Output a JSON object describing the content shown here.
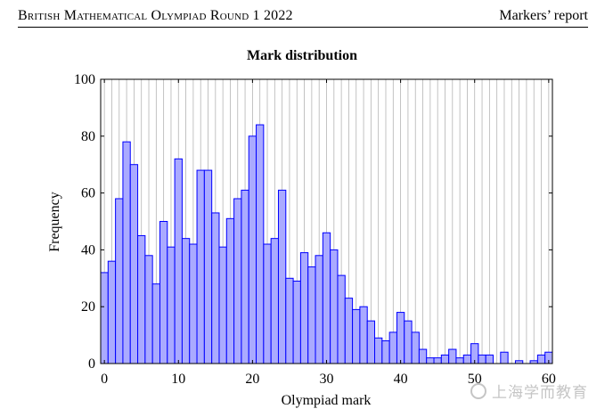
{
  "header": {
    "left": "British Mathematical Olympiad Round 1 2022",
    "right": "Markers’ report"
  },
  "watermark": "上海学而教育",
  "chart_data": {
    "type": "bar",
    "title": "Mark distribution",
    "xlabel": "Olympiad mark",
    "ylabel": "Frequency",
    "xlim": [
      0,
      60
    ],
    "ylim": [
      0,
      100
    ],
    "xticks": [
      "0",
      "10",
      "20",
      "30",
      "40",
      "50",
      "60"
    ],
    "yticks": [
      "0",
      "20",
      "40",
      "60",
      "80",
      "100"
    ],
    "grid": "vertical",
    "bar_color": "#aaaaff",
    "bar_edge": "#0000ff",
    "categories": [
      0,
      1,
      2,
      3,
      4,
      5,
      6,
      7,
      8,
      9,
      10,
      11,
      12,
      13,
      14,
      15,
      16,
      17,
      18,
      19,
      20,
      21,
      22,
      23,
      24,
      25,
      26,
      27,
      28,
      29,
      30,
      31,
      32,
      33,
      34,
      35,
      36,
      37,
      38,
      39,
      40,
      41,
      42,
      43,
      44,
      45,
      46,
      47,
      48,
      49,
      50,
      51,
      52,
      53,
      54,
      55,
      56,
      57,
      58,
      59,
      60
    ],
    "values": [
      32,
      36,
      58,
      78,
      70,
      45,
      38,
      28,
      50,
      41,
      72,
      44,
      42,
      68,
      68,
      53,
      41,
      51,
      58,
      61,
      80,
      84,
      42,
      44,
      61,
      30,
      29,
      39,
      34,
      38,
      46,
      40,
      31,
      23,
      19,
      20,
      15,
      9,
      8,
      11,
      18,
      15,
      11,
      5,
      2,
      2,
      3,
      5,
      2,
      3,
      7,
      3,
      3,
      0,
      4,
      0,
      1,
      0,
      1,
      3,
      4
    ]
  }
}
